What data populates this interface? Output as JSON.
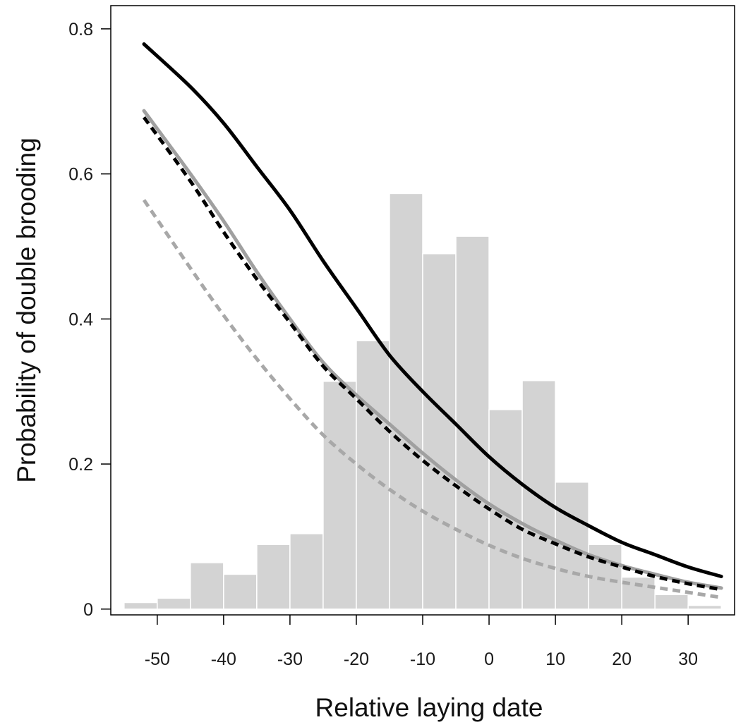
{
  "chart_data": {
    "type": "line",
    "title": "",
    "xlabel": "Relative laying date",
    "ylabel": "Probability of double brooding",
    "xlim": [
      -57,
      37
    ],
    "ylim": [
      -0.008,
      0.832
    ],
    "x_ticks": [
      -50,
      -40,
      -30,
      -20,
      -10,
      0,
      10,
      20,
      30
    ],
    "x_tick_labels": [
      "-50",
      "-40",
      "-30",
      "-20",
      "-10",
      "0",
      "10",
      "20",
      "30"
    ],
    "y_ticks": [
      0,
      0.2,
      0.4,
      0.6,
      0.8
    ],
    "y_tick_labels": [
      "0",
      "0.2",
      "0.4",
      "0.6",
      "0.8"
    ],
    "grid": false,
    "legend": "none",
    "histogram": {
      "bin_edges": [
        -55,
        -50,
        -45,
        -40,
        -35,
        -30,
        -25,
        -20,
        -15,
        -10,
        -5,
        0,
        5,
        10,
        15,
        20,
        25,
        30,
        35
      ],
      "values": [
        0.009,
        0.015,
        0.064,
        0.048,
        0.089,
        0.104,
        0.314,
        0.37,
        0.573,
        0.49,
        0.514,
        0.275,
        0.315,
        0.175,
        0.089,
        0.044,
        0.02,
        0.005
      ],
      "color": "#d3d3d3"
    },
    "series": [
      {
        "style": "solid",
        "color": "#000000",
        "x": [
          -52,
          -45,
          -40,
          -35,
          -30,
          -25,
          -20,
          -15,
          -10,
          -5,
          0,
          5,
          10,
          15,
          20,
          25,
          30,
          35
        ],
        "y": [
          0.779,
          0.72,
          0.67,
          0.61,
          0.55,
          0.48,
          0.415,
          0.35,
          0.3,
          0.255,
          0.21,
          0.172,
          0.14,
          0.115,
          0.092,
          0.075,
          0.058,
          0.045
        ]
      },
      {
        "style": "solid",
        "color": "#a0a0a0",
        "x": [
          -52,
          -45,
          -40,
          -35,
          -30,
          -25,
          -20,
          -15,
          -10,
          -5,
          0,
          5,
          10,
          15,
          20,
          25,
          30,
          35
        ],
        "y": [
          0.687,
          0.6,
          0.535,
          0.465,
          0.4,
          0.34,
          0.295,
          0.255,
          0.215,
          0.178,
          0.145,
          0.118,
          0.095,
          0.075,
          0.06,
          0.048,
          0.037,
          0.029
        ]
      },
      {
        "style": "dashed",
        "color": "#000000",
        "x": [
          -52,
          -45,
          -40,
          -35,
          -30,
          -25,
          -20,
          -15,
          -10,
          -5,
          0,
          5,
          10,
          15,
          20,
          25,
          30,
          35
        ],
        "y": [
          0.678,
          0.59,
          0.52,
          0.455,
          0.395,
          0.335,
          0.29,
          0.245,
          0.205,
          0.17,
          0.138,
          0.11,
          0.09,
          0.072,
          0.058,
          0.045,
          0.035,
          0.027
        ]
      },
      {
        "style": "dashed",
        "color": "#a8a8a8",
        "x": [
          -52,
          -45,
          -40,
          -35,
          -30,
          -25,
          -20,
          -15,
          -10,
          -5,
          0,
          5,
          10,
          15,
          20,
          25,
          30,
          35
        ],
        "y": [
          0.564,
          0.47,
          0.405,
          0.345,
          0.29,
          0.24,
          0.2,
          0.165,
          0.135,
          0.11,
          0.088,
          0.07,
          0.056,
          0.045,
          0.037,
          0.03,
          0.023,
          0.016
        ]
      }
    ]
  }
}
